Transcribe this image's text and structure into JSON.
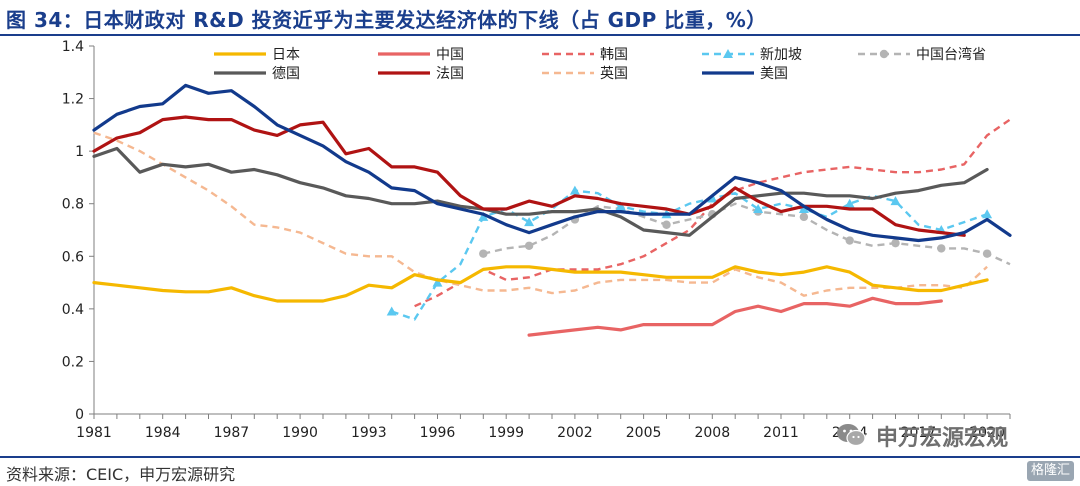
{
  "header": {
    "title": "图 34：日本财政对 R&D 投资近乎为主要发达经济体的下线（占 GDP 比重，%）"
  },
  "footer": {
    "source": "资料来源：CEIC，申万宏源研究"
  },
  "watermark": {
    "text": "申万宏源宏观",
    "icon": "wechat-icon"
  },
  "badge": {
    "text": "格隆汇",
    "icon": "gelonghui-logo-icon"
  },
  "chart_data": {
    "type": "line",
    "title": "图 34：日本财政对 R&D 投资近乎为主要发达经济体的下线（占 GDP 比重，%）",
    "xlabel": "",
    "ylabel": "",
    "xlim": [
      1981,
      2021
    ],
    "ylim": [
      0,
      1.4
    ],
    "yticks": [
      "0",
      "0.2",
      "0.4",
      "0.6",
      "0.8",
      "1",
      "1.2",
      "1.4"
    ],
    "xticks": [
      "1981",
      "1984",
      "1987",
      "1990",
      "1993",
      "1996",
      "1999",
      "2002",
      "2005",
      "2008",
      "2011",
      "2014",
      "2017",
      "2020"
    ],
    "grid": false,
    "legend": "top",
    "series": [
      {
        "name": "日本",
        "color": "#f5b800",
        "dash": "solid",
        "marker": "none",
        "x": [
          1981,
          1982,
          1983,
          1984,
          1985,
          1986,
          1987,
          1988,
          1989,
          1990,
          1991,
          1992,
          1993,
          1994,
          1995,
          1996,
          1997,
          1998,
          1999,
          2000,
          2001,
          2002,
          2003,
          2004,
          2005,
          2006,
          2007,
          2008,
          2009,
          2010,
          2011,
          2012,
          2013,
          2014,
          2015,
          2016,
          2017,
          2018,
          2019,
          2020
        ],
        "values": [
          0.5,
          0.49,
          0.48,
          0.47,
          0.465,
          0.465,
          0.48,
          0.45,
          0.43,
          0.43,
          0.43,
          0.45,
          0.49,
          0.48,
          0.53,
          0.51,
          0.5,
          0.55,
          0.56,
          0.56,
          0.55,
          0.54,
          0.54,
          0.54,
          0.53,
          0.52,
          0.52,
          0.52,
          0.56,
          0.54,
          0.53,
          0.54,
          0.56,
          0.54,
          0.49,
          0.48,
          0.47,
          0.47,
          0.49,
          0.51
        ]
      },
      {
        "name": "中国",
        "color": "#e86464",
        "dash": "solid",
        "marker": "none",
        "x": [
          2000,
          2001,
          2002,
          2003,
          2004,
          2005,
          2006,
          2007,
          2008,
          2009,
          2010,
          2011,
          2012,
          2013,
          2014,
          2015,
          2016,
          2017,
          2018
        ],
        "values": [
          0.3,
          0.31,
          0.32,
          0.33,
          0.32,
          0.34,
          0.34,
          0.34,
          0.34,
          0.39,
          0.41,
          0.39,
          0.42,
          0.42,
          0.41,
          0.44,
          0.42,
          0.42,
          0.43
        ]
      },
      {
        "name": "韩国",
        "color": "#e86464",
        "dash": "dashed",
        "marker": "none",
        "x": [
          1995,
          1996,
          1997,
          1998,
          1999,
          2000,
          2001,
          2002,
          2003,
          2004,
          2005,
          2006,
          2007,
          2008,
          2009,
          2010,
          2011,
          2012,
          2013,
          2014,
          2015,
          2016,
          2017,
          2018,
          2019,
          2020,
          2021
        ],
        "values": [
          0.41,
          0.45,
          0.5,
          0.55,
          0.51,
          0.52,
          0.55,
          0.55,
          0.55,
          0.57,
          0.6,
          0.65,
          0.7,
          0.8,
          0.85,
          0.88,
          0.9,
          0.92,
          0.93,
          0.94,
          0.93,
          0.92,
          0.92,
          0.93,
          0.95,
          1.06,
          1.12
        ]
      },
      {
        "name": "新加坡",
        "color": "#5bc8f0",
        "dash": "dashed",
        "marker": "triangle",
        "x": [
          1994,
          1995,
          1996,
          1997,
          1998,
          1999,
          2000,
          2001,
          2002,
          2003,
          2004,
          2005,
          2006,
          2007,
          2008,
          2009,
          2010,
          2011,
          2012,
          2013,
          2014,
          2015,
          2016,
          2017,
          2018,
          2019,
          2020
        ],
        "values": [
          0.39,
          0.36,
          0.5,
          0.57,
          0.75,
          0.78,
          0.73,
          0.78,
          0.85,
          0.84,
          0.79,
          0.77,
          0.76,
          0.8,
          0.82,
          0.84,
          0.78,
          0.8,
          0.78,
          0.75,
          0.8,
          0.83,
          0.81,
          0.72,
          0.7,
          0.73,
          0.76
        ]
      },
      {
        "name": "中国台湾省",
        "color": "#b4b4b4",
        "dash": "dashed",
        "marker": "circle",
        "x": [
          1998,
          1999,
          2000,
          2001,
          2002,
          2003,
          2004,
          2005,
          2006,
          2007,
          2008,
          2009,
          2010,
          2011,
          2012,
          2013,
          2014,
          2015,
          2016,
          2017,
          2018,
          2019,
          2020,
          2021
        ],
        "values": [
          0.61,
          0.63,
          0.64,
          0.68,
          0.74,
          0.79,
          0.78,
          0.75,
          0.72,
          0.74,
          0.76,
          0.8,
          0.77,
          0.76,
          0.75,
          0.7,
          0.66,
          0.64,
          0.65,
          0.64,
          0.63,
          0.63,
          0.61,
          0.57
        ]
      },
      {
        "name": "德国",
        "color": "#595959",
        "dash": "solid",
        "marker": "none",
        "x": [
          1981,
          1982,
          1983,
          1984,
          1985,
          1986,
          1987,
          1988,
          1989,
          1990,
          1991,
          1992,
          1993,
          1994,
          1995,
          1996,
          1997,
          1998,
          1999,
          2000,
          2001,
          2002,
          2003,
          2004,
          2005,
          2006,
          2007,
          2008,
          2009,
          2010,
          2011,
          2012,
          2013,
          2014,
          2015,
          2016,
          2017,
          2018,
          2019,
          2020
        ],
        "values": [
          0.98,
          1.01,
          0.92,
          0.95,
          0.94,
          0.95,
          0.92,
          0.93,
          0.91,
          0.88,
          0.86,
          0.83,
          0.82,
          0.8,
          0.8,
          0.81,
          0.79,
          0.78,
          0.76,
          0.76,
          0.77,
          0.77,
          0.78,
          0.75,
          0.7,
          0.69,
          0.68,
          0.75,
          0.82,
          0.83,
          0.84,
          0.84,
          0.83,
          0.83,
          0.82,
          0.84,
          0.85,
          0.87,
          0.88,
          0.93
        ]
      },
      {
        "name": "法国",
        "color": "#b01313",
        "dash": "solid",
        "marker": "none",
        "x": [
          1981,
          1982,
          1983,
          1984,
          1985,
          1986,
          1987,
          1988,
          1989,
          1990,
          1991,
          1992,
          1993,
          1994,
          1995,
          1996,
          1997,
          1998,
          1999,
          2000,
          2001,
          2002,
          2003,
          2004,
          2005,
          2006,
          2007,
          2008,
          2009,
          2010,
          2011,
          2012,
          2013,
          2014,
          2015,
          2016,
          2017,
          2018,
          2019
        ],
        "values": [
          1.0,
          1.05,
          1.07,
          1.12,
          1.13,
          1.12,
          1.12,
          1.08,
          1.06,
          1.1,
          1.11,
          0.99,
          1.01,
          0.94,
          0.94,
          0.92,
          0.83,
          0.78,
          0.78,
          0.81,
          0.79,
          0.83,
          0.82,
          0.8,
          0.79,
          0.78,
          0.76,
          0.79,
          0.86,
          0.81,
          0.77,
          0.79,
          0.79,
          0.78,
          0.78,
          0.72,
          0.7,
          0.69,
          0.68
        ]
      },
      {
        "name": "英国",
        "color": "#f5b891",
        "dash": "dashed",
        "marker": "none",
        "x": [
          1981,
          1982,
          1983,
          1984,
          1985,
          1986,
          1987,
          1988,
          1989,
          1990,
          1991,
          1992,
          1993,
          1994,
          1995,
          1996,
          1997,
          1998,
          1999,
          2000,
          2001,
          2002,
          2003,
          2004,
          2005,
          2006,
          2007,
          2008,
          2009,
          2010,
          2011,
          2012,
          2013,
          2014,
          2015,
          2016,
          2017,
          2018,
          2019,
          2020
        ],
        "values": [
          1.07,
          1.04,
          1.0,
          0.95,
          0.9,
          0.85,
          0.79,
          0.72,
          0.71,
          0.69,
          0.65,
          0.61,
          0.6,
          0.6,
          0.54,
          0.51,
          0.49,
          0.47,
          0.47,
          0.48,
          0.46,
          0.47,
          0.5,
          0.51,
          0.51,
          0.51,
          0.5,
          0.5,
          0.55,
          0.52,
          0.5,
          0.45,
          0.47,
          0.48,
          0.48,
          0.48,
          0.49,
          0.49,
          0.48,
          0.56
        ]
      },
      {
        "name": "美国",
        "color": "#123a8c",
        "dash": "solid",
        "marker": "none",
        "x": [
          1981,
          1982,
          1983,
          1984,
          1985,
          1986,
          1987,
          1988,
          1989,
          1990,
          1991,
          1992,
          1993,
          1994,
          1995,
          1996,
          1997,
          1998,
          1999,
          2000,
          2001,
          2002,
          2003,
          2004,
          2005,
          2006,
          2007,
          2008,
          2009,
          2010,
          2011,
          2012,
          2013,
          2014,
          2015,
          2016,
          2017,
          2018,
          2019,
          2020,
          2021
        ],
        "values": [
          1.08,
          1.14,
          1.17,
          1.18,
          1.25,
          1.22,
          1.23,
          1.17,
          1.1,
          1.06,
          1.02,
          0.96,
          0.92,
          0.86,
          0.85,
          0.8,
          0.78,
          0.76,
          0.72,
          0.69,
          0.72,
          0.75,
          0.77,
          0.77,
          0.76,
          0.76,
          0.76,
          0.83,
          0.9,
          0.88,
          0.85,
          0.79,
          0.74,
          0.7,
          0.68,
          0.67,
          0.66,
          0.67,
          0.69,
          0.74,
          0.68
        ]
      }
    ]
  }
}
